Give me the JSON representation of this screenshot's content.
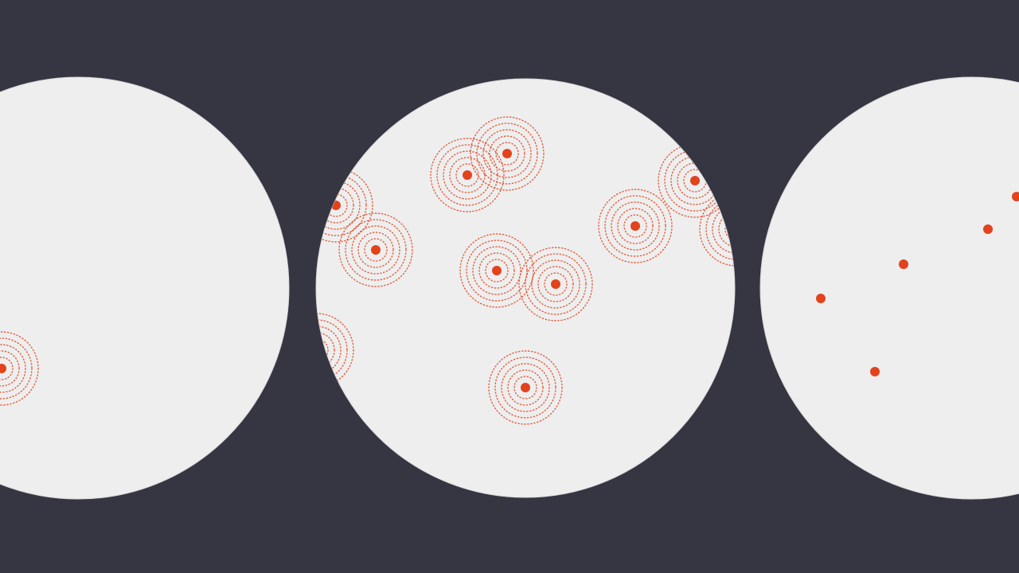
{
  "colors": {
    "background": "#363542",
    "disc_fill": "#eeeeee",
    "disc_stroke": "#d9d9d9",
    "dot": "#e2431d",
    "ring": "#e2431d"
  },
  "icons": [
    "signal-source-dot-icon",
    "ripple-rings-icon"
  ],
  "panels": [
    {
      "name": "panel-left",
      "state": "faded-ripples",
      "sources": 1
    },
    {
      "name": "panel-center",
      "state": "active-ripples",
      "sources": 11
    },
    {
      "name": "panel-right",
      "state": "dots-only",
      "sources": 5
    }
  ]
}
